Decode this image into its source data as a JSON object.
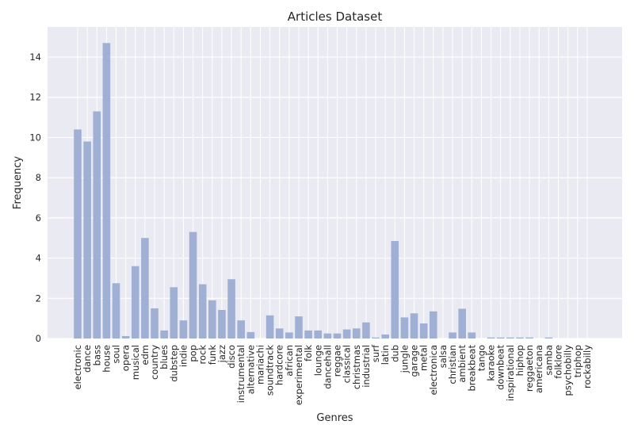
{
  "chart_data": {
    "type": "bar",
    "title": "Articles Dataset",
    "xlabel": "Genres",
    "ylabel": "Frequency",
    "ylim": [
      0,
      15.5
    ],
    "yticks": [
      0,
      2,
      4,
      6,
      8,
      10,
      12,
      14
    ],
    "grid": true,
    "colors": {
      "bar": "#9fb0d4",
      "plot_bg": "#eaeaf2",
      "grid": "#ffffff"
    },
    "categories": [
      "electronic",
      "dance",
      "bass",
      "house",
      "soul",
      "opera",
      "musical",
      "edm",
      "country",
      "blues",
      "dubstep",
      "indie",
      "pop",
      "rock",
      "funk",
      "jazz",
      "disco",
      "instrumental",
      "alternative",
      "mariachi",
      "soundtrack",
      "hardcore",
      "african",
      "experimental",
      "folk",
      "lounge",
      "dancehall",
      "reggae",
      "classical",
      "christmas",
      "industrial",
      "surf",
      "latin",
      "dub",
      "jungle",
      "garage",
      "metal",
      "electronica",
      "salsa",
      "christian",
      "ambient",
      "breakbeat",
      "tango",
      "karaoke",
      "downbeat",
      "inspirational",
      "hiphop",
      "reggaeton",
      "americana",
      "samba",
      "folklore",
      "psychobilly",
      "triphop",
      "rockabilly"
    ],
    "values": [
      10.4,
      9.8,
      11.3,
      14.7,
      2.75,
      0.12,
      3.6,
      5.0,
      1.5,
      0.4,
      2.55,
      0.9,
      5.3,
      2.7,
      1.9,
      1.42,
      2.95,
      0.9,
      0.32,
      0.0,
      1.15,
      0.5,
      0.3,
      1.1,
      0.4,
      0.4,
      0.25,
      0.25,
      0.45,
      0.5,
      0.8,
      0.05,
      0.2,
      4.85,
      1.05,
      1.25,
      0.75,
      1.35,
      0.0,
      0.3,
      1.48,
      0.3,
      0.0,
      0.05,
      0.05,
      0.05,
      0.05,
      0.05,
      0.0,
      0.05,
      0.0,
      0.0,
      0.0,
      0.0
    ]
  }
}
